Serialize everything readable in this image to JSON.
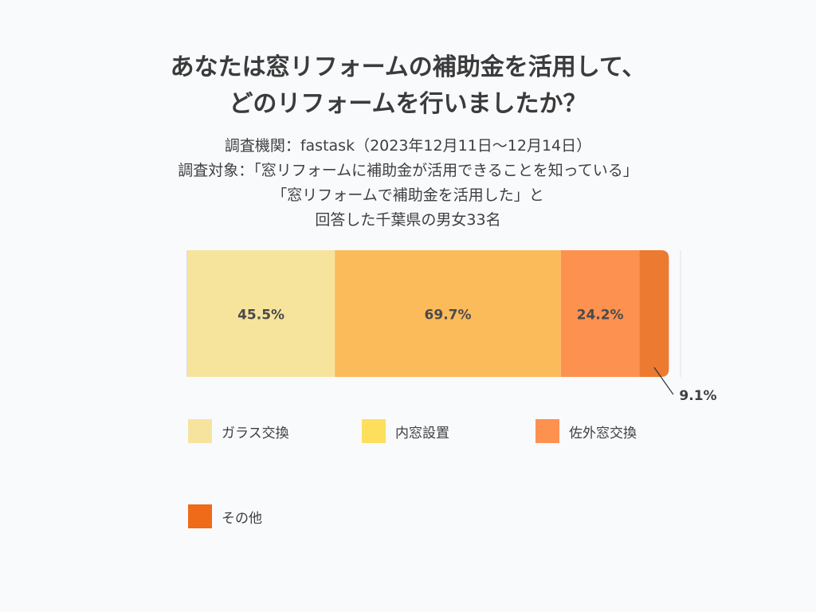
{
  "title_lines": [
    "あなたは窓リフォームの補助金を活用して、",
    "どのリフォームを行いましたか？"
  ],
  "subtitle_lines": [
    "調査機関：fastask（2023年12月11日〜12月14日）",
    "調査対象：「窓リフォームに補助金が活用できることを知っている」",
    "「窓リフォームで補助金を活用した」と",
    "回答した千葉県の男女33名"
  ],
  "chart_data": {
    "type": "bar",
    "orientation": "horizontal-stacked",
    "categories": [
      ""
    ],
    "series": [
      {
        "name": "ガラス交換",
        "values": [
          45.5
        ],
        "label": "45.5%",
        "color": "#f7e49c"
      },
      {
        "name": "内窓設置",
        "values": [
          69.7
        ],
        "label": "69.7%",
        "color": "#fcbb5b"
      },
      {
        "name": "佐外窓交換",
        "values": [
          24.2
        ],
        "label": "24.2%",
        "color": "#fd9150"
      },
      {
        "name": "その他",
        "values": [
          9.1
        ],
        "label": "9.1%",
        "color": "#ec7a31"
      }
    ],
    "legend_colors": [
      "#f6e49e",
      "#fddf5d",
      "#fd9150",
      "#ef6a19"
    ],
    "legend_position": "bottom",
    "grid": false
  }
}
